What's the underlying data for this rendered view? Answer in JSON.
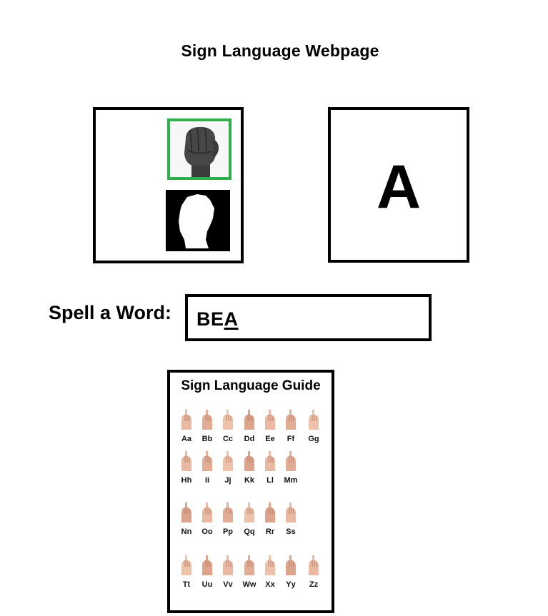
{
  "page": {
    "title": "Sign Language Webpage"
  },
  "camera": {
    "hand_icon": "closed-fist-hand-icon",
    "mask_icon": "hand-silhouette-icon",
    "frame_color": "#2fae4e"
  },
  "prediction": {
    "letter": "A"
  },
  "spell": {
    "label": "Spell a Word:",
    "word_prefix": "BE",
    "word_current": "A"
  },
  "guide": {
    "title": "Sign Language Guide",
    "letters": [
      "Aa",
      "Bb",
      "Cc",
      "Dd",
      "Ee",
      "Ff",
      "Gg",
      "Hh",
      "Ii",
      "Jj",
      "Kk",
      "Ll",
      "Mm",
      "Nn",
      "Oo",
      "Pp",
      "Qq",
      "Rr",
      "Ss",
      "Tt",
      "Uu",
      "Vv",
      "Ww",
      "Xx",
      "Yy",
      "Zz"
    ]
  }
}
